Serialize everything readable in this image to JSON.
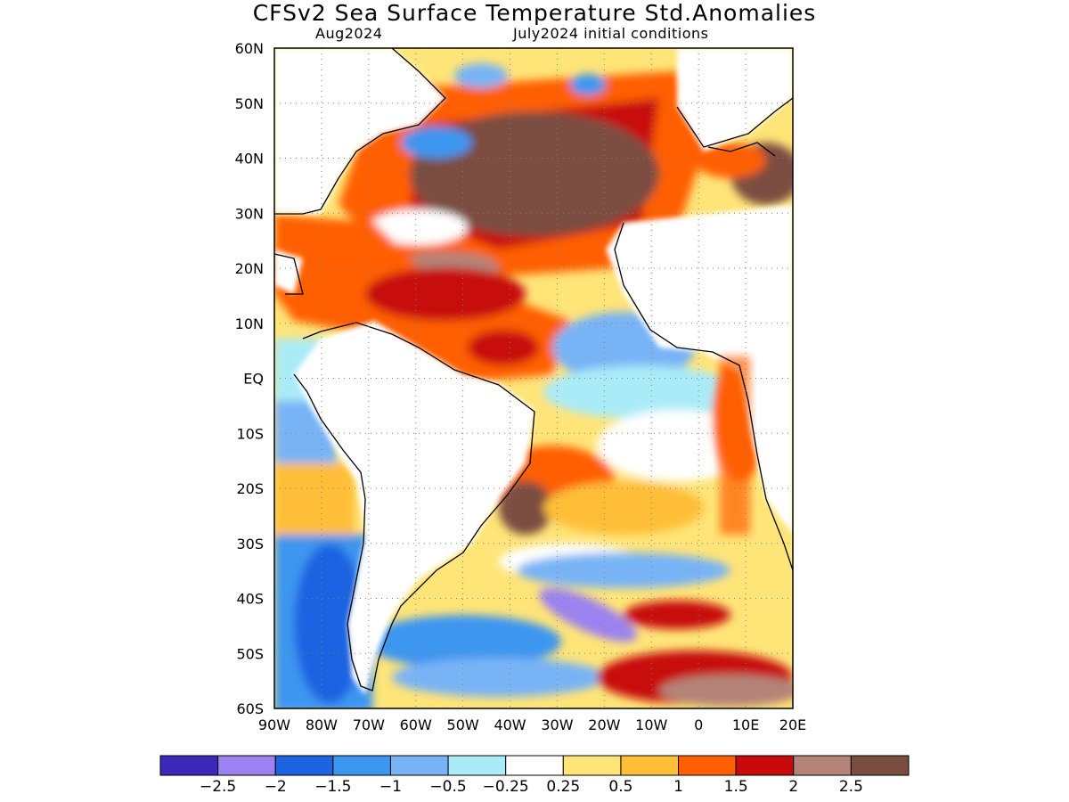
{
  "header": {
    "title": "CFSv2 Sea Surface Temperature Std.Anomalies",
    "valid_month": "Aug2024",
    "init_conditions": "July2024 initial conditions"
  },
  "map": {
    "lat_labels": [
      "60N",
      "50N",
      "40N",
      "30N",
      "20N",
      "10N",
      "EQ",
      "10S",
      "20S",
      "30S",
      "40S",
      "50S",
      "60S"
    ],
    "lon_labels": [
      "90W",
      "80W",
      "70W",
      "60W",
      "50W",
      "40W",
      "30W",
      "20W",
      "10W",
      "0",
      "10E",
      "20E"
    ],
    "lat_range": [
      -60,
      60
    ],
    "lon_range": [
      -90,
      20
    ],
    "grid": "dotted",
    "land_color": "#ffffff",
    "coastline_color": "#000000"
  },
  "colorbar": {
    "colors": [
      "#3c28b8",
      "#9b82f0",
      "#1e64e1",
      "#3c96f0",
      "#78b4f5",
      "#aaebf8",
      "#ffffff",
      "#ffe478",
      "#ffbe37",
      "#ff5f00",
      "#c80a0a",
      "#b48478",
      "#7a4d40"
    ],
    "tick_labels": [
      "-2.5",
      "-2",
      "-1.5",
      "-1",
      "-0.5",
      "-0.25",
      "0.25",
      "0.5",
      "1",
      "1.5",
      "2",
      "2.5"
    ]
  }
}
